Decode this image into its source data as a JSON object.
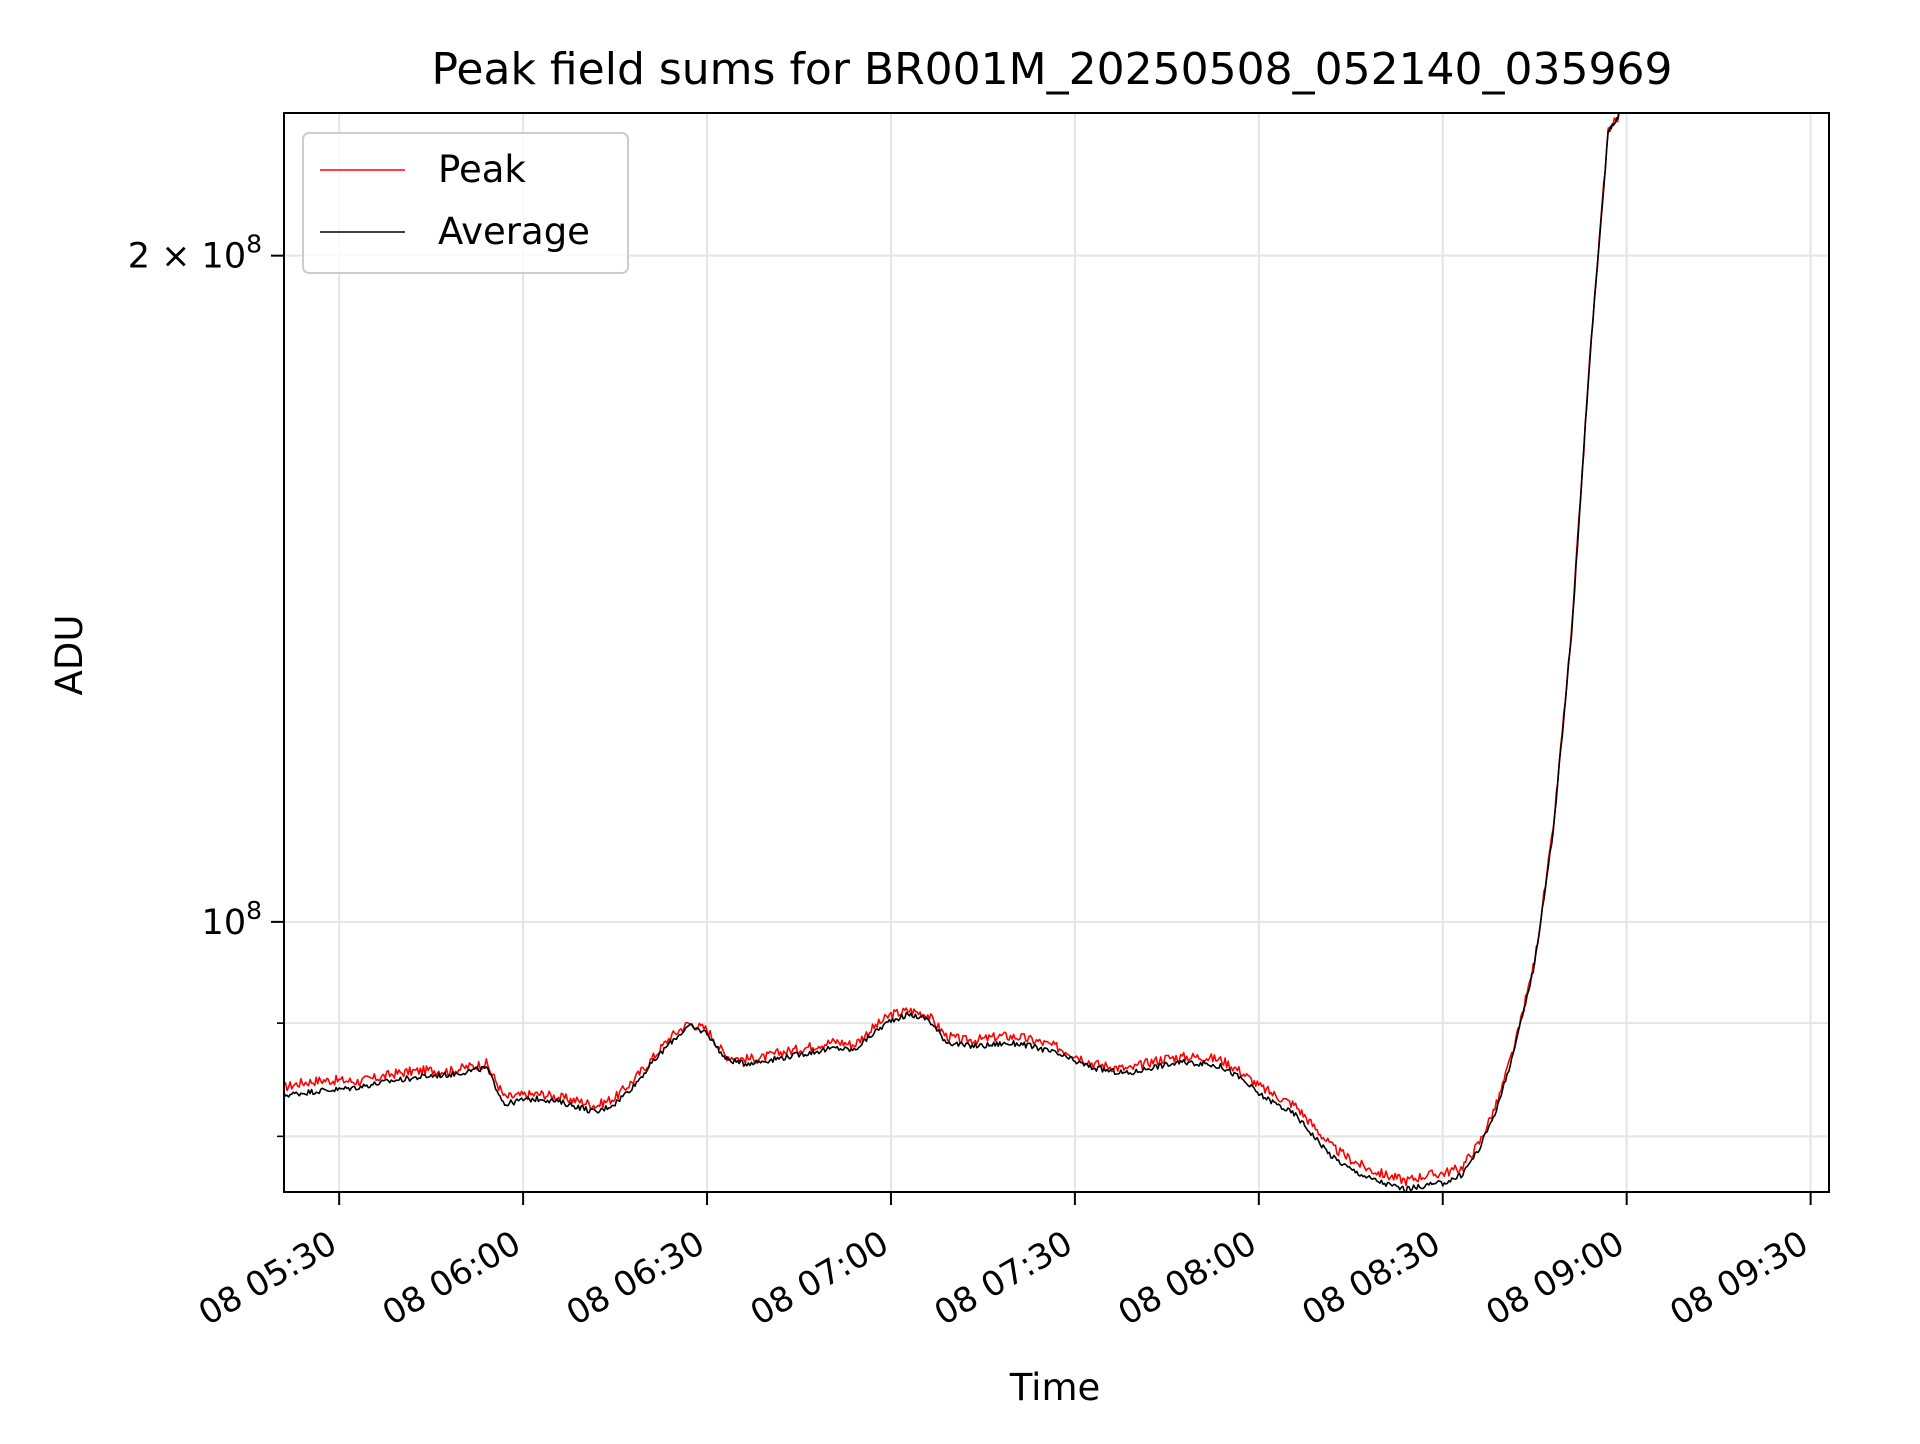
{
  "chart_data": {
    "type": "line",
    "title": "Peak field sums for BR001M_20250508_052140_035969",
    "xlabel": "Time",
    "ylabel": "ADU",
    "x_unit": "time of day on the 8th, HH:MM",
    "y_scale": "log",
    "xlim": [
      "08 05:21",
      "08 09:33"
    ],
    "ylim": [
      75500000,
      232000000
    ],
    "x_ticks": [
      "08 05:30",
      "08 06:00",
      "08 06:30",
      "08 07:00",
      "08 07:30",
      "08 08:00",
      "08 08:30",
      "08 09:00",
      "08 09:30"
    ],
    "y_ticks": [
      {
        "value": 100000000,
        "base": "10",
        "exp": "8",
        "label": "10^8"
      },
      {
        "value": 200000000,
        "mult": "2 × ",
        "base": "10",
        "exp": "8",
        "label": "2 × 10^8"
      }
    ],
    "y_minor_ticks": [
      80000000,
      90000000
    ],
    "grid": true,
    "legend": {
      "placement": "upper left"
    },
    "series": [
      {
        "name": "Peak",
        "color": "#ff0000",
        "points": [
          [
            "05:21",
            84200000
          ],
          [
            "05:24",
            84600000
          ],
          [
            "05:27",
            84800000
          ],
          [
            "05:30",
            84800000
          ],
          [
            "05:33",
            84700000
          ],
          [
            "05:36",
            85000000
          ],
          [
            "05:39",
            85400000
          ],
          [
            "05:42",
            85600000
          ],
          [
            "05:45",
            85700000
          ],
          [
            "05:48",
            85600000
          ],
          [
            "05:51",
            86000000
          ],
          [
            "05:54",
            86300000
          ],
          [
            "05:57",
            83300000
          ],
          [
            "06:00",
            83500000
          ],
          [
            "06:03",
            83600000
          ],
          [
            "06:06",
            83300000
          ],
          [
            "06:09",
            83000000
          ],
          [
            "06:12",
            82600000
          ],
          [
            "06:15",
            83300000
          ],
          [
            "06:18",
            84800000
          ],
          [
            "06:21",
            86700000
          ],
          [
            "06:24",
            88700000
          ],
          [
            "06:27",
            90000000
          ],
          [
            "06:30",
            89400000
          ],
          [
            "06:33",
            87000000
          ],
          [
            "06:36",
            86700000
          ],
          [
            "06:39",
            86800000
          ],
          [
            "06:42",
            87300000
          ],
          [
            "06:45",
            87600000
          ],
          [
            "06:48",
            88000000
          ],
          [
            "06:51",
            88300000
          ],
          [
            "06:54",
            88000000
          ],
          [
            "06:57",
            89500000
          ],
          [
            "07:00",
            90800000
          ],
          [
            "07:03",
            91200000
          ],
          [
            "07:06",
            90800000
          ],
          [
            "07:09",
            88800000
          ],
          [
            "07:12",
            88400000
          ],
          [
            "07:15",
            88500000
          ],
          [
            "07:18",
            88800000
          ],
          [
            "07:21",
            88700000
          ],
          [
            "07:24",
            88300000
          ],
          [
            "07:27",
            87800000
          ],
          [
            "07:30",
            87100000
          ],
          [
            "07:33",
            86300000
          ],
          [
            "07:36",
            86000000
          ],
          [
            "07:39",
            85800000
          ],
          [
            "07:42",
            86400000
          ],
          [
            "07:45",
            86800000
          ],
          [
            "07:48",
            86900000
          ],
          [
            "07:51",
            86900000
          ],
          [
            "07:54",
            86600000
          ],
          [
            "07:57",
            85600000
          ],
          [
            "08:00",
            84300000
          ],
          [
            "08:03",
            83400000
          ],
          [
            "08:06",
            82600000
          ],
          [
            "08:09",
            80800000
          ],
          [
            "08:12",
            79100000
          ],
          [
            "08:15",
            78100000
          ],
          [
            "08:18",
            77300000
          ],
          [
            "08:21",
            76800000
          ],
          [
            "08:24",
            76400000
          ],
          [
            "08:27",
            76800000
          ],
          [
            "08:30",
            77000000
          ],
          [
            "08:33",
            77400000
          ],
          [
            "08:36",
            79500000
          ],
          [
            "08:39",
            83000000
          ],
          [
            "08:42",
            88500000
          ],
          [
            "08:45",
            96000000
          ],
          [
            "08:48",
            110000000
          ],
          [
            "08:51",
            135000000
          ],
          [
            "08:54",
            180000000
          ],
          [
            "08:57",
            228000000
          ],
          [
            "08:59",
            232000000
          ]
        ]
      },
      {
        "name": "Average",
        "color": "#000000",
        "points": [
          [
            "05:21",
            83500000
          ],
          [
            "05:24",
            83700000
          ],
          [
            "05:27",
            83900000
          ],
          [
            "05:30",
            84000000
          ],
          [
            "05:33",
            84200000
          ],
          [
            "05:36",
            84500000
          ],
          [
            "05:39",
            84800000
          ],
          [
            "05:42",
            85000000
          ],
          [
            "05:45",
            85200000
          ],
          [
            "05:48",
            85300000
          ],
          [
            "05:51",
            85600000
          ],
          [
            "05:54",
            85900000
          ],
          [
            "05:57",
            82700000
          ],
          [
            "06:00",
            83100000
          ],
          [
            "06:03",
            83200000
          ],
          [
            "06:06",
            82900000
          ],
          [
            "06:09",
            82500000
          ],
          [
            "06:12",
            82000000
          ],
          [
            "06:15",
            82800000
          ],
          [
            "06:18",
            84300000
          ],
          [
            "06:21",
            86300000
          ],
          [
            "06:24",
            88200000
          ],
          [
            "06:27",
            89700000
          ],
          [
            "06:30",
            89100000
          ],
          [
            "06:33",
            86700000
          ],
          [
            "06:36",
            86300000
          ],
          [
            "06:39",
            86500000
          ],
          [
            "06:42",
            86800000
          ],
          [
            "06:45",
            87100000
          ],
          [
            "06:48",
            87400000
          ],
          [
            "06:51",
            87700000
          ],
          [
            "06:54",
            87500000
          ],
          [
            "06:57",
            89000000
          ],
          [
            "07:00",
            90300000
          ],
          [
            "07:03",
            90800000
          ],
          [
            "07:06",
            90400000
          ],
          [
            "07:09",
            88300000
          ],
          [
            "07:12",
            87900000
          ],
          [
            "07:15",
            87900000
          ],
          [
            "07:18",
            88100000
          ],
          [
            "07:21",
            88100000
          ],
          [
            "07:24",
            87700000
          ],
          [
            "07:27",
            87200000
          ],
          [
            "07:30",
            86500000
          ],
          [
            "07:33",
            85900000
          ],
          [
            "07:36",
            85600000
          ],
          [
            "07:39",
            85400000
          ],
          [
            "07:42",
            85900000
          ],
          [
            "07:45",
            86200000
          ],
          [
            "07:48",
            86400000
          ],
          [
            "07:51",
            86300000
          ],
          [
            "07:54",
            86000000
          ],
          [
            "07:57",
            85000000
          ],
          [
            "08:00",
            83600000
          ],
          [
            "08:03",
            82700000
          ],
          [
            "08:06",
            81800000
          ],
          [
            "08:09",
            80000000
          ],
          [
            "08:12",
            78300000
          ],
          [
            "08:15",
            77300000
          ],
          [
            "08:18",
            76600000
          ],
          [
            "08:21",
            76100000
          ],
          [
            "08:24",
            75700000
          ],
          [
            "08:27",
            76000000
          ],
          [
            "08:30",
            76200000
          ],
          [
            "08:33",
            76800000
          ],
          [
            "08:36",
            79000000
          ],
          [
            "08:39",
            82600000
          ],
          [
            "08:42",
            88200000
          ],
          [
            "08:45",
            95800000
          ],
          [
            "08:48",
            109800000
          ],
          [
            "08:51",
            134800000
          ],
          [
            "08:54",
            179800000
          ],
          [
            "08:57",
            227800000
          ],
          [
            "08:59",
            232000000
          ]
        ]
      }
    ]
  }
}
